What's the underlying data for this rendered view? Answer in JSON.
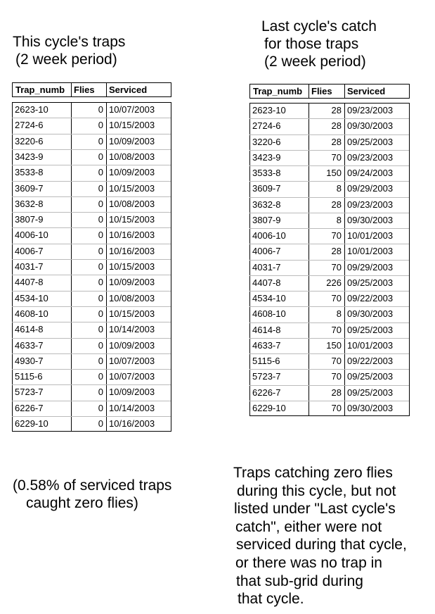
{
  "left": {
    "title": [
      "This cycle's traps",
      "(2 week period)"
    ],
    "table": {
      "columns": [
        "Trap_numb",
        "Flies",
        "Serviced"
      ],
      "rows": [
        [
          "2623-10",
          0,
          "10/07/2003"
        ],
        [
          "2724-6",
          0,
          "10/15/2003"
        ],
        [
          "3220-6",
          0,
          "10/09/2003"
        ],
        [
          "3423-9",
          0,
          "10/08/2003"
        ],
        [
          "3533-8",
          0,
          "10/09/2003"
        ],
        [
          "3609-7",
          0,
          "10/15/2003"
        ],
        [
          "3632-8",
          0,
          "10/08/2003"
        ],
        [
          "3807-9",
          0,
          "10/15/2003"
        ],
        [
          "4006-10",
          0,
          "10/16/2003"
        ],
        [
          "4006-7",
          0,
          "10/16/2003"
        ],
        [
          "4031-7",
          0,
          "10/15/2003"
        ],
        [
          "4407-8",
          0,
          "10/09/2003"
        ],
        [
          "4534-10",
          0,
          "10/08/2003"
        ],
        [
          "4608-10",
          0,
          "10/15/2003"
        ],
        [
          "4614-8",
          0,
          "10/14/2003"
        ],
        [
          "4633-7",
          0,
          "10/09/2003"
        ],
        [
          "4930-7",
          0,
          "10/07/2003"
        ],
        [
          "5115-6",
          0,
          "10/07/2003"
        ],
        [
          "5723-7",
          0,
          "10/09/2003"
        ],
        [
          "6226-7",
          0,
          "10/14/2003"
        ],
        [
          "6229-10",
          0,
          "10/16/2003"
        ]
      ]
    },
    "note": [
      "(0.58% of serviced traps",
      "caught zero flies)"
    ]
  },
  "right": {
    "title": [
      "Last cycle's catch",
      "for those traps",
      "(2 week period)"
    ],
    "table": {
      "columns": [
        "Trap_numb",
        "Flies",
        "Serviced"
      ],
      "rows": [
        [
          "2623-10",
          28,
          "09/23/2003"
        ],
        [
          "2724-6",
          28,
          "09/30/2003"
        ],
        [
          "3220-6",
          28,
          "09/25/2003"
        ],
        [
          "3423-9",
          70,
          "09/23/2003"
        ],
        [
          "3533-8",
          150,
          "09/24/2003"
        ],
        [
          "3609-7",
          8,
          "09/29/2003"
        ],
        [
          "3632-8",
          28,
          "09/23/2003"
        ],
        [
          "3807-9",
          8,
          "09/30/2003"
        ],
        [
          "4006-10",
          70,
          "10/01/2003"
        ],
        [
          "4006-7",
          28,
          "10/01/2003"
        ],
        [
          "4031-7",
          70,
          "09/29/2003"
        ],
        [
          "4407-8",
          226,
          "09/25/2003"
        ],
        [
          "4534-10",
          70,
          "09/22/2003"
        ],
        [
          "4608-10",
          8,
          "09/30/2003"
        ],
        [
          "4614-8",
          70,
          "09/25/2003"
        ],
        [
          "4633-7",
          150,
          "10/01/2003"
        ],
        [
          "5115-6",
          70,
          "09/22/2003"
        ],
        [
          "5723-7",
          70,
          "09/25/2003"
        ],
        [
          "6226-7",
          28,
          "09/25/2003"
        ],
        [
          "6229-10",
          70,
          "09/30/2003"
        ]
      ]
    },
    "note": [
      "Traps catching zero flies",
      "during this cycle, but not",
      "listed under \"Last cycle's",
      "catch\", either were not",
      "serviced during that cycle,",
      "or there was no trap in",
      "that sub-grid during",
      "that cycle."
    ]
  }
}
